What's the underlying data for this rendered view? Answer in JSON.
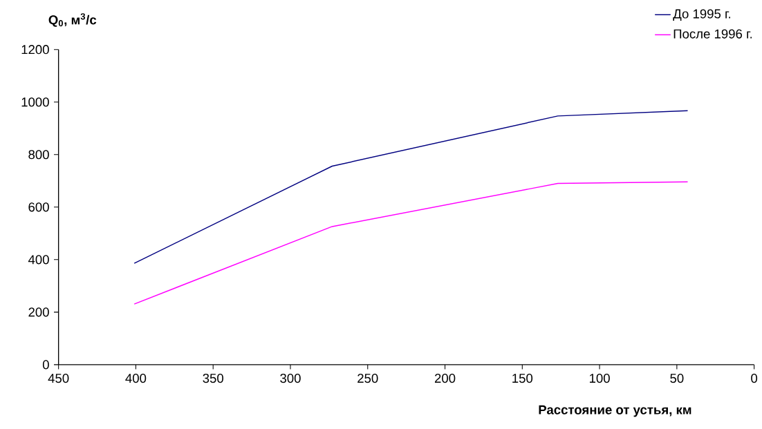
{
  "chart_data": {
    "type": "line",
    "xlabel": "Расстояние от устья, км",
    "ylabel": "Q$_{0}$, м$^{3}$/с",
    "x": [
      401,
      273,
      127,
      43
    ],
    "series": [
      {
        "name": "До 1995 г.",
        "color": "#000080",
        "values": [
          386,
          756,
          947,
          967
        ]
      },
      {
        "name": "После 1996 г.",
        "color": "#ff00ff",
        "values": [
          231,
          526,
          690,
          696
        ]
      }
    ],
    "xlim": [
      450,
      0
    ],
    "ylim": [
      0,
      1200
    ],
    "xticks": [
      450,
      400,
      350,
      300,
      250,
      200,
      150,
      100,
      50,
      0
    ],
    "yticks": [
      0,
      200,
      400,
      600,
      800,
      1000,
      1200
    ],
    "grid": false,
    "legend": "top right",
    "marker": "none",
    "line_style": "solid"
  }
}
